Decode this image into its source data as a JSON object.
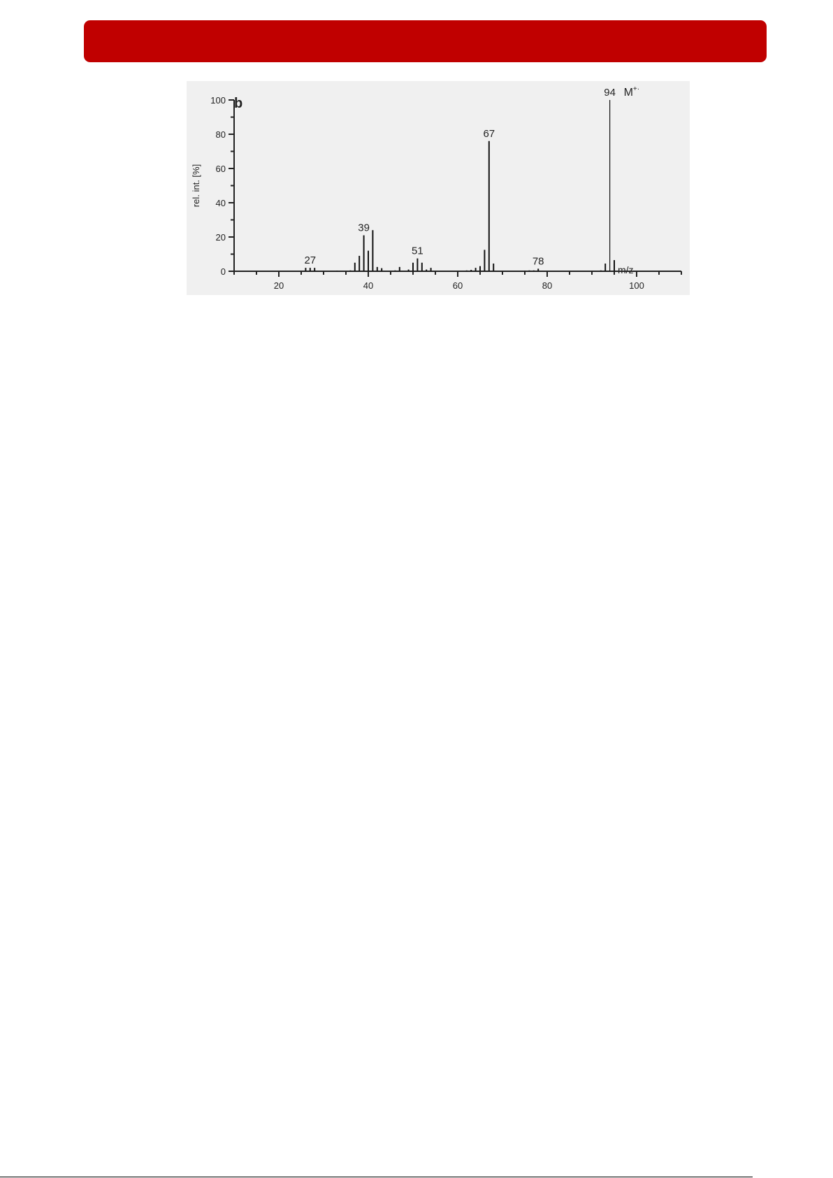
{
  "header": {
    "color": "#c00000"
  },
  "chart_data": {
    "type": "bar",
    "panel_label": "b",
    "xlabel": "m/z",
    "ylabel": "rel. int. [%]",
    "xlim": [
      10,
      110
    ],
    "ylim": [
      0,
      100
    ],
    "xticks": [
      20,
      40,
      60,
      80,
      100
    ],
    "yticks": [
      0,
      20,
      40,
      60,
      80,
      100
    ],
    "grid": false,
    "background": "#f0f0f0",
    "x": [
      26,
      27,
      28,
      33,
      36,
      37,
      38,
      39,
      40,
      41,
      42,
      43,
      46,
      47,
      49,
      50,
      51,
      52,
      53,
      54,
      62,
      63,
      64,
      65,
      66,
      67,
      68,
      75,
      76,
      77,
      78,
      92,
      93,
      94,
      95
    ],
    "values": [
      2,
      2,
      2,
      0.3,
      0.5,
      5,
      9,
      21,
      12,
      24,
      2.5,
      1.8,
      0.5,
      2.5,
      1,
      5,
      7.5,
      5,
      1,
      2,
      0.5,
      0.8,
      2,
      3,
      12.5,
      76,
      4.5,
      0.3,
      0.5,
      0.5,
      1.5,
      0.5,
      4.5,
      100,
      6.5
    ],
    "annotations": [
      {
        "x": 27,
        "text": "27"
      },
      {
        "x": 39,
        "text": "39"
      },
      {
        "x": 51,
        "text": "51"
      },
      {
        "x": 67,
        "text": "67"
      },
      {
        "x": 78,
        "text": "78"
      },
      {
        "x": 94,
        "text": "94"
      }
    ],
    "molecular_ion_label": "M",
    "molecular_ion_superscript": "+·"
  }
}
